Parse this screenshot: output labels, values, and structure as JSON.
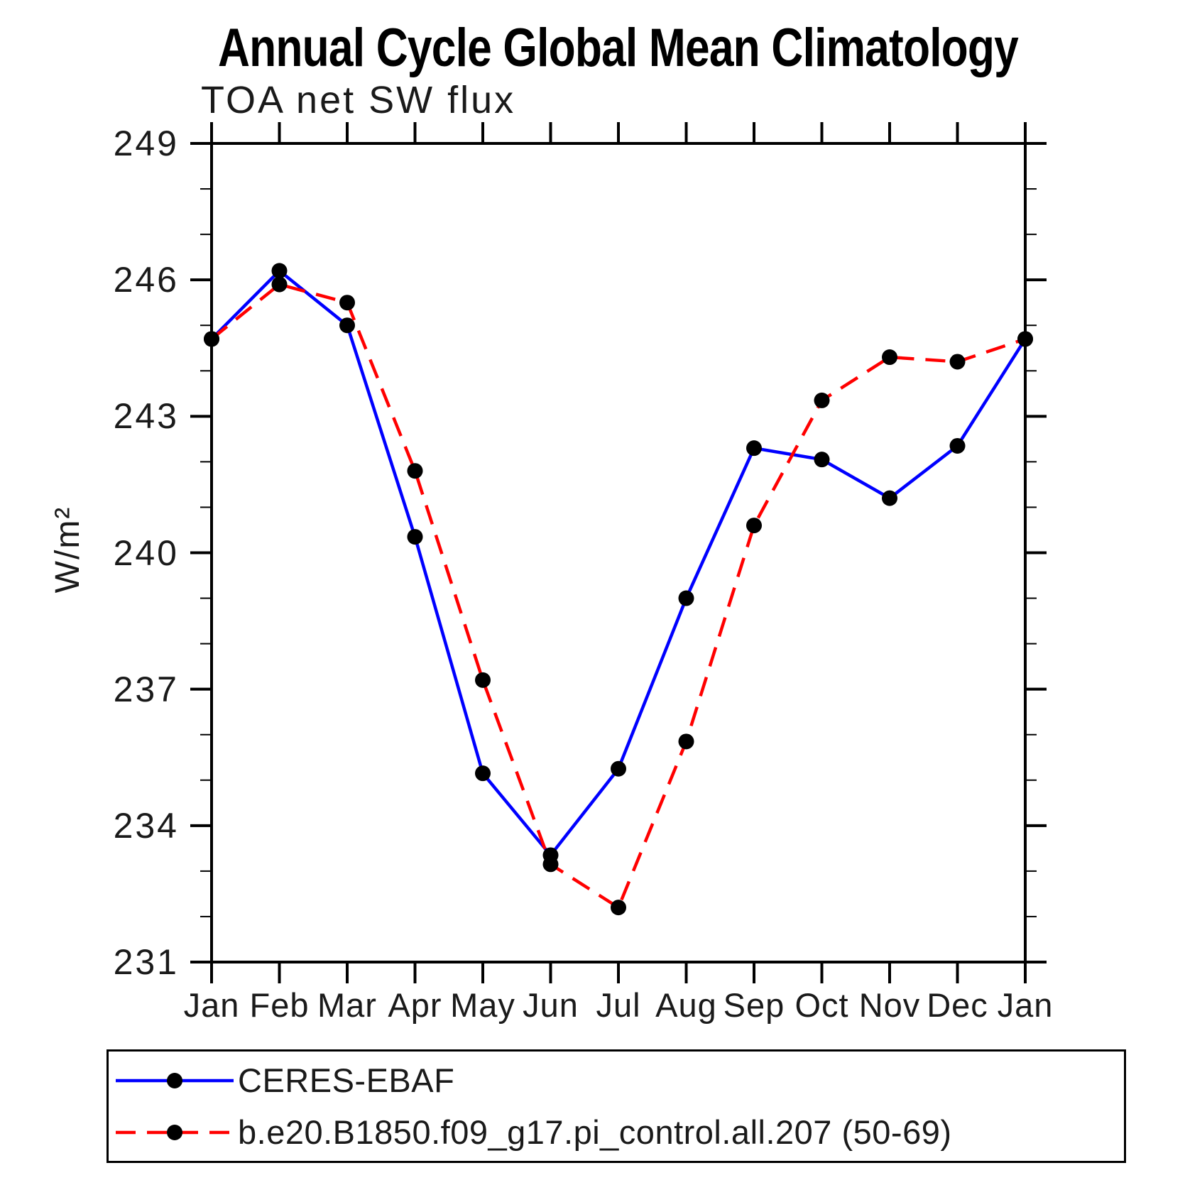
{
  "chart_data": {
    "type": "line",
    "title": "Annual Cycle Global Mean Climatology",
    "subtitle": "TOA net SW flux",
    "ylabel": "W/m²",
    "xlabel": "",
    "x_categories": [
      "Jan",
      "Feb",
      "Mar",
      "Apr",
      "May",
      "Jun",
      "Jul",
      "Aug",
      "Sep",
      "Oct",
      "Nov",
      "Dec",
      "Jan"
    ],
    "ylim": [
      231,
      249
    ],
    "y_major_ticks": [
      231,
      234,
      237,
      240,
      243,
      246,
      249
    ],
    "y_minor_step": 1,
    "grid": false,
    "frame_color": "#000000",
    "marker": {
      "shape": "circle",
      "color": "#000000",
      "radius": 11
    },
    "legend_position": "bottom-box",
    "series": [
      {
        "name": "CERES-EBAF",
        "color": "#0000ff",
        "line_style": "solid",
        "values": [
          244.7,
          246.2,
          245.0,
          240.35,
          235.15,
          233.35,
          235.25,
          239.0,
          242.3,
          242.05,
          241.2,
          242.35,
          244.7
        ]
      },
      {
        "name": "b.e20.B1850.f09_g17.pi_control.all.207 (50-69)",
        "color": "#ff0000",
        "line_style": "dashed",
        "values": [
          244.7,
          245.9,
          245.5,
          241.8,
          237.2,
          233.15,
          232.2,
          235.85,
          240.6,
          243.35,
          244.3,
          244.2,
          244.7
        ]
      }
    ]
  }
}
